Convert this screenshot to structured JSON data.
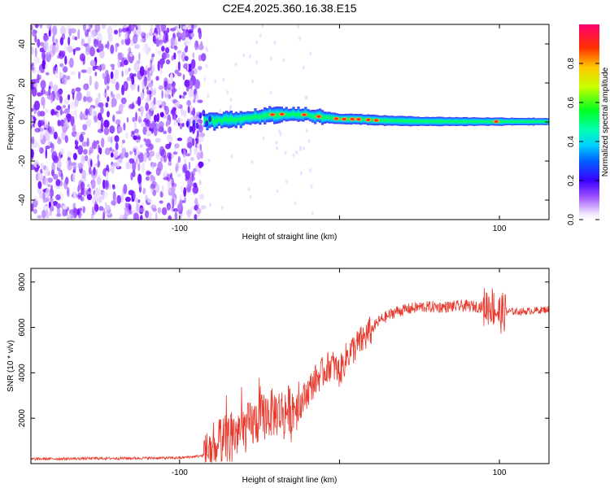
{
  "title": "C2E4.2025.360.16.38.E15",
  "chart_data": [
    {
      "type": "heatmap",
      "name": "spectrogram",
      "xlabel": "Height of straight line (km)",
      "ylabel": "Frequency (Hz)",
      "xlim": [
        -193,
        131
      ],
      "ylim": [
        -50,
        50
      ],
      "xticks": [
        -100,
        0,
        100
      ],
      "xtick_labels": [
        "-100",
        "",
        "100"
      ],
      "yticks": [
        -40,
        -20,
        0,
        20,
        40
      ],
      "ytick_labels": [
        "-40",
        "-20",
        "0",
        "20",
        "40"
      ],
      "noise_region_end_km": -85,
      "ridge": {
        "x": [
          -85,
          -70,
          -55,
          -40,
          -25,
          -10,
          0,
          10,
          25,
          50,
          75,
          100,
          131
        ],
        "freq": [
          0.5,
          1.0,
          2.5,
          4.0,
          4.0,
          2.5,
          1.5,
          1.5,
          0.8,
          0.3,
          0.2,
          0.2,
          0.2
        ]
      },
      "hotspots_km": [
        -42,
        -36,
        -22,
        -13,
        -2,
        3,
        8,
        12,
        18,
        23,
        98
      ],
      "colorbar": {
        "label": "Normalized spectral amplitude",
        "min": 0.0,
        "max": 1.0,
        "ticks": [
          0.0,
          0.2,
          0.4,
          0.6,
          0.8
        ],
        "tick_labels": [
          "0.0",
          "0.2",
          "0.4",
          "0.6",
          "0.8"
        ]
      }
    },
    {
      "type": "line",
      "name": "snr",
      "xlabel": "Height of straight line (km)",
      "ylabel": "SNR (10 * v/v)",
      "xlim": [
        -193,
        131
      ],
      "ylim": [
        0,
        8600
      ],
      "xticks": [
        -100,
        0,
        100
      ],
      "xtick_labels": [
        "-100",
        "",
        "100"
      ],
      "yticks": [
        2000,
        4000,
        6000,
        8000
      ],
      "ytick_labels": [
        "2000",
        "4000",
        "6000",
        "8000"
      ],
      "series": [
        {
          "name": "SNR",
          "color": "#e83a2e",
          "x": [
            -193,
            -150,
            -100,
            -85,
            -75,
            -65,
            -55,
            -45,
            -35,
            -25,
            -15,
            -5,
            0,
            5,
            15,
            25,
            35,
            50,
            65,
            80,
            90,
            95,
            100,
            105,
            115,
            131
          ],
          "y": [
            200,
            230,
            250,
            350,
            900,
            1300,
            1700,
            2200,
            2300,
            2600,
            3700,
            4400,
            4000,
            4800,
            5500,
            6300,
            6700,
            6900,
            6900,
            6950,
            6900,
            7000,
            6600,
            6700,
            6700,
            6800
          ]
        }
      ]
    }
  ]
}
